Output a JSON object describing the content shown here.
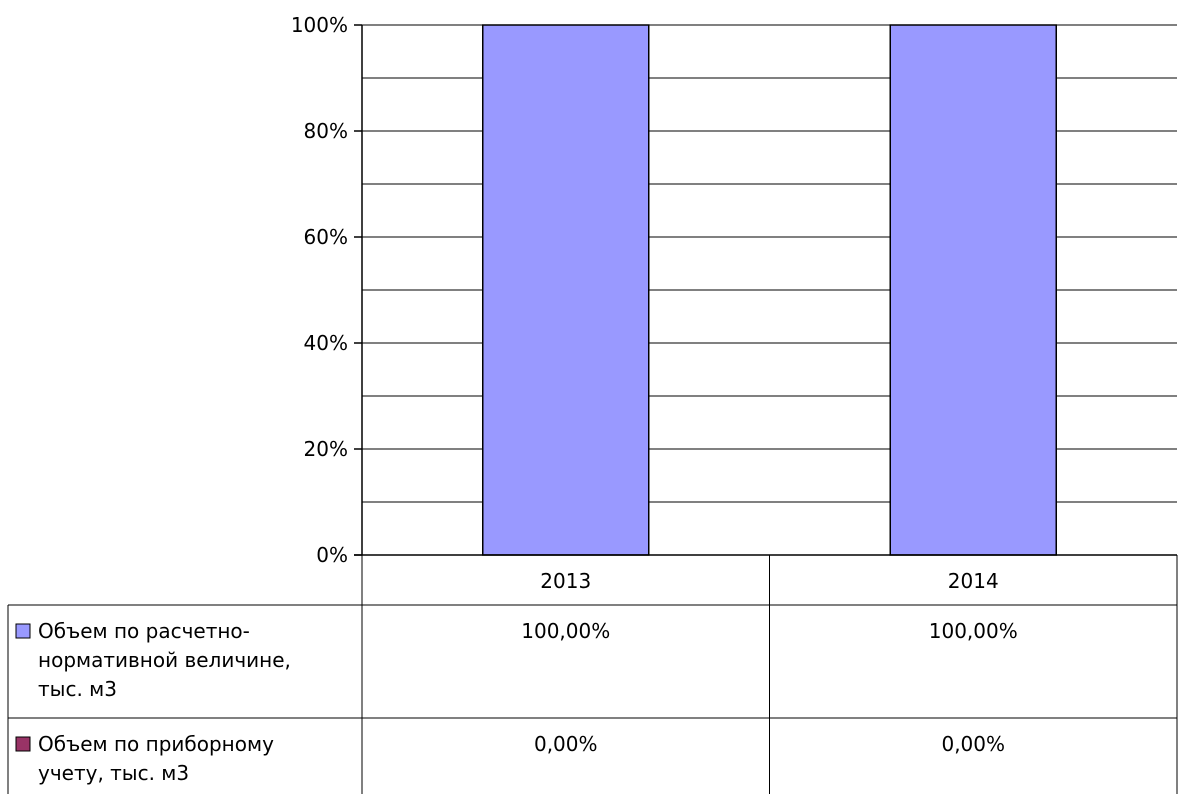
{
  "chart_data": {
    "type": "bar",
    "stacked": "percent",
    "categories": [
      "2013",
      "2014"
    ],
    "series": [
      {
        "name": "Объем по расчетно-нормативной величине, тыс. м3",
        "name_lines": [
          "Объем по расчетно-",
          "нормативной величине,",
          "тыс. м3"
        ],
        "values": [
          100,
          100
        ],
        "labels": [
          "100,00%",
          "100,00%"
        ],
        "color": "#9999ff"
      },
      {
        "name": "Объем по приборному учету, тыс. м3",
        "name_lines": [
          "Объем по приборному",
          "учету, тыс. м3"
        ],
        "values": [
          0,
          0
        ],
        "labels": [
          "0,00%",
          "0,00%"
        ],
        "color": "#993366"
      }
    ],
    "y_ticks": [
      "0%",
      "20%",
      "40%",
      "60%",
      "80%",
      "100%"
    ],
    "ylim": [
      0,
      100
    ],
    "grid": true,
    "legend": "data-table-left",
    "data_table": true
  }
}
